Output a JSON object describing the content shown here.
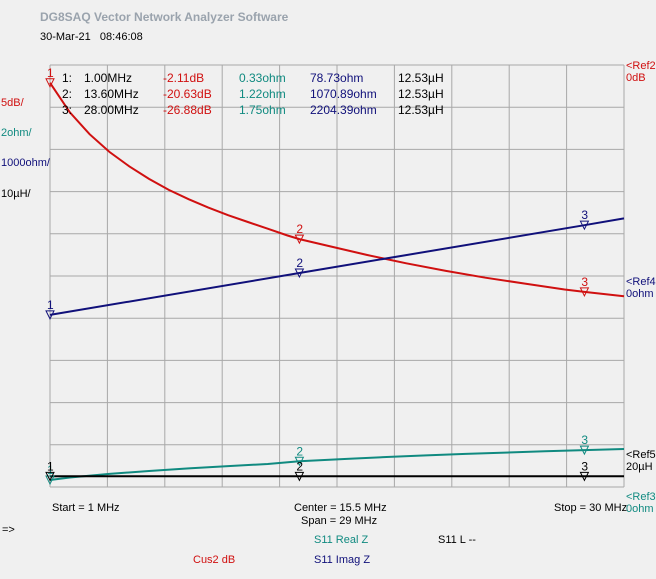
{
  "header": {
    "app_title": "DG8SAQ Vector Network Analyzer Software",
    "date": "30-Mar-21",
    "time": "08:46:08"
  },
  "scales": [
    {
      "label": "5dB/",
      "color": "#d01010"
    },
    {
      "label": "2ohm/",
      "color": "#108a80"
    },
    {
      "label": "1000ohm/",
      "color": "#10107a"
    },
    {
      "label": "10µH/",
      "color": "#000000"
    }
  ],
  "refs": {
    "ref2": {
      "name": "<Ref2",
      "value": "0dB",
      "color": "#d01010"
    },
    "ref4": {
      "name": "<Ref4",
      "value": "0ohm",
      "color": "#10107a"
    },
    "ref5": {
      "name": "<Ref5",
      "value": "20µH",
      "color": "#000000"
    },
    "ref3": {
      "name": "<Ref3",
      "value": "0ohm",
      "color": "#108a80"
    }
  },
  "markers": [
    {
      "id": "1:",
      "freq": "1.00MHz",
      "db": "-2.11dB",
      "real": "0.33ohm",
      "imag": "78.73ohm",
      "ind": "12.53µH"
    },
    {
      "id": "2:",
      "freq": "13.60MHz",
      "db": "-20.63dB",
      "real": "1.22ohm",
      "imag": "1070.89ohm",
      "ind": "12.53µH"
    },
    {
      "id": "3:",
      "freq": "28.00MHz",
      "db": "-26.88dB",
      "real": "1.75ohm",
      "imag": "2204.39ohm",
      "ind": "12.53µH"
    }
  ],
  "footer": {
    "start": "Start = 1 MHz",
    "center": "Center = 15.5 MHz",
    "span": "Span = 29 MHz",
    "stop": "Stop = 30 MHz",
    "arrow": "=>",
    "trace_real": "S11  Real Z",
    "trace_l": "S11  L --",
    "trace_db": "Cus2 dB",
    "trace_imag": "S11  Imag Z"
  },
  "colors": {
    "db": "#d01010",
    "real": "#108a80",
    "imag": "#10107a",
    "ind": "#000000",
    "grid": "#a8a8a8",
    "background": "#f0f0f0"
  },
  "chart_data": {
    "type": "line",
    "x_range_mhz": [
      1,
      30
    ],
    "grid": true,
    "grid_divisions": {
      "x": 10,
      "y": 10
    },
    "series": [
      {
        "name": "Cus2 dB",
        "unit": "dB",
        "ref": 0,
        "per_div": 5,
        "ref_division": 10,
        "x": [
          1,
          2,
          3,
          4,
          5,
          6,
          7,
          8,
          9,
          10,
          11,
          12,
          13,
          13.6,
          15,
          17,
          19,
          21,
          23,
          25,
          27,
          28,
          30
        ],
        "values": [
          -2.11,
          -5.6,
          -8.2,
          -10.3,
          -12.0,
          -13.5,
          -14.8,
          -15.9,
          -16.9,
          -17.8,
          -18.6,
          -19.4,
          -20.2,
          -20.63,
          -21.4,
          -22.5,
          -23.5,
          -24.4,
          -25.2,
          -25.9,
          -26.6,
          -26.88,
          -27.4
        ],
        "markers": [
          {
            "x": 1.0,
            "y": -2.11
          },
          {
            "x": 13.6,
            "y": -20.63
          },
          {
            "x": 28.0,
            "y": -26.88
          }
        ]
      },
      {
        "name": "S11 Real Z",
        "unit": "ohm",
        "ref": 0,
        "per_div": 2,
        "ref_division": 0,
        "x": [
          1,
          2,
          4,
          6,
          8,
          10,
          12,
          13.6,
          16,
          18,
          20,
          22,
          24,
          26,
          28,
          30
        ],
        "values": [
          0.33,
          0.45,
          0.62,
          0.76,
          0.88,
          0.99,
          1.09,
          1.22,
          1.33,
          1.42,
          1.5,
          1.57,
          1.63,
          1.69,
          1.75,
          1.8
        ],
        "markers": [
          {
            "x": 1.0,
            "y": 0.33
          },
          {
            "x": 13.6,
            "y": 1.22
          },
          {
            "x": 28.0,
            "y": 1.75
          }
        ]
      },
      {
        "name": "S11 Imag Z",
        "unit": "ohm",
        "ref": 0,
        "per_div": 1000,
        "ref_division": 4,
        "x": [
          1,
          13.6,
          28,
          30
        ],
        "values": [
          78.73,
          1070.89,
          2204.39,
          2365
        ],
        "markers": [
          {
            "x": 1.0,
            "y": 78.73
          },
          {
            "x": 13.6,
            "y": 1070.89
          },
          {
            "x": 28.0,
            "y": 2204.39
          }
        ]
      },
      {
        "name": "S11 L",
        "unit": "µH",
        "ref": 20,
        "per_div": 10,
        "ref_division": 1,
        "x": [
          1,
          30
        ],
        "values": [
          12.53,
          12.53
        ],
        "markers": [
          {
            "x": 1.0,
            "y": 12.53
          },
          {
            "x": 13.6,
            "y": 12.53
          },
          {
            "x": 28.0,
            "y": 12.53
          }
        ]
      }
    ]
  }
}
